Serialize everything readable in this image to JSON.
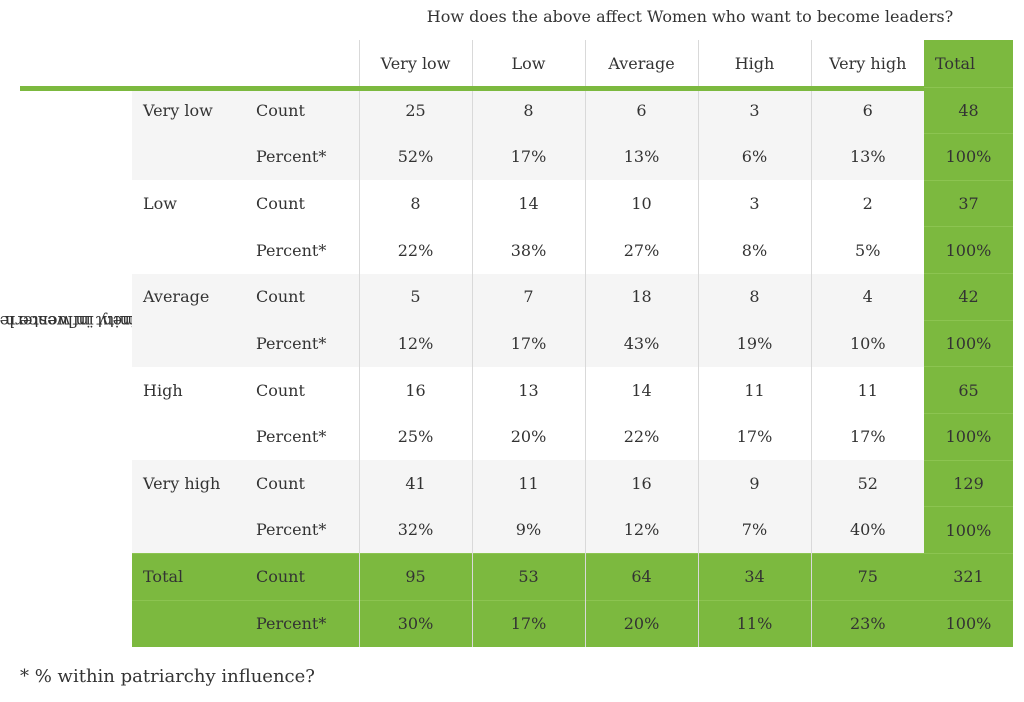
{
  "top_title": "How does the above affect Women who want to become leaders?",
  "row_title": "How does masculinity influence leadership learning and development in western Kenya?",
  "row_title_line1": "How does masculinity influence leadership learning",
  "row_title_line2": "and development in western Kenya?",
  "columns": [
    "Very low",
    "Low",
    "Average",
    "High",
    "Very high",
    "Total"
  ],
  "stat_labels": {
    "count": "Count",
    "percent": "Percent*"
  },
  "rows": [
    {
      "label": "Very low",
      "count": [
        "25",
        "8",
        "6",
        "3",
        "6",
        "48"
      ],
      "percent": [
        "52%",
        "17%",
        "13%",
        "6%",
        "13%",
        "100%"
      ]
    },
    {
      "label": "Low",
      "count": [
        "8",
        "14",
        "10",
        "3",
        "2",
        "37"
      ],
      "percent": [
        "22%",
        "38%",
        "27%",
        "8%",
        "5%",
        "100%"
      ]
    },
    {
      "label": "Average",
      "count": [
        "5",
        "7",
        "18",
        "8",
        "4",
        "42"
      ],
      "percent": [
        "12%",
        "17%",
        "43%",
        "19%",
        "10%",
        "100%"
      ]
    },
    {
      "label": "High",
      "count": [
        "16",
        "13",
        "14",
        "11",
        "11",
        "65"
      ],
      "percent": [
        "25%",
        "20%",
        "22%",
        "17%",
        "17%",
        "100%"
      ]
    },
    {
      "label": "Very high",
      "count": [
        "41",
        "11",
        "16",
        "9",
        "52",
        "129"
      ],
      "percent": [
        "32%",
        "9%",
        "12%",
        "7%",
        "40%",
        "100%"
      ]
    },
    {
      "label": "Total",
      "count": [
        "95",
        "53",
        "64",
        "34",
        "75",
        "321"
      ],
      "percent": [
        "30%",
        "17%",
        "20%",
        "11%",
        "23%",
        "100%"
      ]
    }
  ],
  "footnote": "* % within patriarchy influence?",
  "colors": {
    "accent_green": "#7cb93f",
    "shade_gray": "#f5f5f5",
    "text": "#333333"
  }
}
